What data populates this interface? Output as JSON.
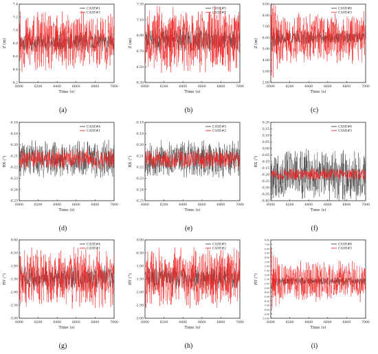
{
  "panels": [
    {
      "caption": "(a)",
      "chart_data": {
        "type": "line",
        "ylabel": "Z (m)",
        "xlabel": "Time (s)",
        "x_range": [
          6000,
          7000
        ],
        "xticks": [
          "6000",
          "6200",
          "6400",
          "6600",
          "6800",
          "7000"
        ],
        "ylim": [
          6.2,
          7.4
        ],
        "yticks": [
          "6.2",
          "6.4",
          "6.6",
          "6.8",
          "7.0",
          "7.2",
          "7.4"
        ],
        "mean": 6.82,
        "amp_gray": 0.1,
        "amp_red": 0.3,
        "seed": 11,
        "series": [
          {
            "name": "CASE#1",
            "color": "#444444"
          },
          {
            "name": "CASE#3",
            "color": "#ee2222"
          }
        ],
        "legend": "top-right"
      }
    },
    {
      "caption": "(b)",
      "chart_data": {
        "type": "line",
        "ylabel": "Z (m)",
        "xlabel": "Time (s)",
        "x_range": [
          6000,
          7000
        ],
        "xticks": [
          "6000",
          "6200",
          "6400",
          "6600",
          "6800",
          "7000"
        ],
        "ylim": [
          6.3,
          7.3
        ],
        "yticks": [
          "6.30",
          "6.50",
          "6.70",
          "6.90",
          "7.10",
          "7.30"
        ],
        "mean": 6.85,
        "amp_gray": 0.1,
        "amp_red": 0.28,
        "seed": 23,
        "series": [
          {
            "name": "CASE#5",
            "color": "#444444"
          },
          {
            "name": "CASE#2",
            "color": "#ee2222"
          }
        ],
        "legend": "top-right"
      }
    },
    {
      "caption": "(c)",
      "chart_data": {
        "type": "line",
        "ylabel": "Z (m)",
        "xlabel": "Time (s)",
        "x_range": [
          6000,
          7000
        ],
        "xticks": [
          "6000",
          "6200",
          "6400",
          "6600",
          "6800",
          "7000"
        ],
        "ylim": [
          2,
          9
        ],
        "yticks": [
          "2.00",
          "3.00",
          "4.00",
          "5.00",
          "6.00",
          "7.00",
          "8.00",
          "9.00"
        ],
        "mean": 6.0,
        "amp_gray": 0.4,
        "amp_red": 1.5,
        "seed": 37,
        "series": [
          {
            "name": "CASE#6",
            "color": "#444444"
          },
          {
            "name": "CASE#3",
            "color": "#ee2222"
          }
        ],
        "legend": "top-right"
      }
    },
    {
      "caption": "(d)",
      "chart_data": {
        "type": "line",
        "ylabel": "RX (°)",
        "xlabel": "Time (s)",
        "x_range": [
          6000,
          7000
        ],
        "xticks": [
          "6000",
          "6200",
          "6400",
          "6600",
          "6800",
          "7000"
        ],
        "ylim": [
          -0.25,
          -0.18
        ],
        "yticks": [
          "-0.25",
          "-0.24",
          "-0.23",
          "-0.22",
          "-0.21",
          "-0.20",
          "-0.19",
          "-0.18"
        ],
        "mean": -0.213,
        "amp_gray": 0.011,
        "amp_red": 0.006,
        "seed": 41,
        "series": [
          {
            "name": "CASE#4",
            "color": "#444444"
          },
          {
            "name": "CASE#1",
            "color": "#ee2222"
          }
        ],
        "legend": "top-right"
      }
    },
    {
      "caption": "(e)",
      "chart_data": {
        "type": "line",
        "ylabel": "RX (°)",
        "xlabel": "Time (s)",
        "x_range": [
          6000,
          7000
        ],
        "xticks": [
          "6000",
          "6200",
          "6400",
          "6600",
          "6800",
          "7000"
        ],
        "ylim": [
          -0.25,
          -0.18
        ],
        "yticks": [
          "-0.25",
          "-0.24",
          "-0.23",
          "-0.22",
          "-0.21",
          "-0.20",
          "-0.19",
          "-0.18"
        ],
        "mean": -0.213,
        "amp_gray": 0.011,
        "amp_red": 0.006,
        "seed": 53,
        "series": [
          {
            "name": "CASE#5",
            "color": "#444444"
          },
          {
            "name": "CASE#2",
            "color": "#ee2222"
          }
        ],
        "legend": "top-right"
      }
    },
    {
      "caption": "(f)",
      "chart_data": {
        "type": "line",
        "ylabel": "RX (°)",
        "xlabel": "Time (s)",
        "x_range": [
          6000,
          7000
        ],
        "xticks": [
          "6000",
          "6200",
          "6400",
          "6600",
          "6800",
          "7000"
        ],
        "ylim": [
          -0.4,
          0.2
        ],
        "yticks": [
          "-0.40",
          "-0.35",
          "-0.30",
          "-0.25",
          "-0.20",
          "-0.15",
          "-0.10",
          "-0.05",
          "0.00",
          "0.05",
          "0.10",
          "0.15",
          "0.20"
        ],
        "mean": -0.2,
        "amp_gray": 0.13,
        "amp_red": 0.03,
        "seed": 67,
        "series": [
          {
            "name": "CASE#6",
            "color": "#444444"
          },
          {
            "name": "CASE#3",
            "color": "#ee2222"
          }
        ],
        "legend": "top-right"
      }
    },
    {
      "caption": "(g)",
      "chart_data": {
        "type": "line",
        "ylabel": "RY (°)",
        "xlabel": "Time (s)",
        "x_range": [
          6000,
          7000
        ],
        "xticks": [
          "6000",
          "6200",
          "6400",
          "6600",
          "6800",
          "7000"
        ],
        "ylim": [
          -3,
          0
        ],
        "yticks": [
          "-3.00",
          "-2.50",
          "-2.00",
          "-1.50",
          "-1.00",
          "-0.50",
          "0.00"
        ],
        "mean": -1.45,
        "amp_gray": 0.3,
        "amp_red": 0.75,
        "seed": 71,
        "series": [
          {
            "name": "CASE#4",
            "color": "#444444"
          },
          {
            "name": "CASE#1",
            "color": "#ee2222"
          }
        ],
        "legend": "top-right"
      }
    },
    {
      "caption": "(h)",
      "chart_data": {
        "type": "line",
        "ylabel": "RY (°)",
        "xlabel": "Time (s)",
        "x_range": [
          6000,
          7000
        ],
        "xticks": [
          "6000",
          "6200",
          "6400",
          "6600",
          "6800",
          "7000"
        ],
        "ylim": [
          -3,
          0
        ],
        "yticks": [
          "-3.00",
          "-2.50",
          "-2.00",
          "-1.50",
          "-1.00",
          "-0.50",
          "0.00"
        ],
        "mean": -1.45,
        "amp_gray": 0.3,
        "amp_red": 0.75,
        "seed": 83,
        "series": [
          {
            "name": "CASE#5",
            "color": "#444444"
          },
          {
            "name": "CASE#2",
            "color": "#ee2222"
          }
        ],
        "legend": "top-right"
      }
    },
    {
      "caption": "(i)",
      "chart_data": {
        "type": "line",
        "ylabel": "RY (°)",
        "xlabel": "Time (s)",
        "x_range": [
          6000,
          7000
        ],
        "xticks": [
          "6000",
          "6200",
          "6400",
          "6600",
          "6800",
          "7000"
        ],
        "ylim": [
          -10,
          8
        ],
        "yticks": [
          "-10.00",
          "-9.00",
          "-8.00",
          "-7.00",
          "-6.00",
          "-5.00",
          "-4.00",
          "-3.00",
          "-2.00",
          "-1.00",
          "0.00",
          "1.00",
          "2.00",
          "3.00",
          "4.00",
          "5.00",
          "6.00",
          "7.00",
          "8.00"
        ],
        "mean": -1.5,
        "amp_gray": 0.6,
        "amp_red": 3.0,
        "seed": 97,
        "series": [
          {
            "name": "CASE#6",
            "color": "#444444"
          },
          {
            "name": "CASE#3",
            "color": "#ee2222"
          }
        ],
        "legend": "top-right"
      }
    }
  ]
}
